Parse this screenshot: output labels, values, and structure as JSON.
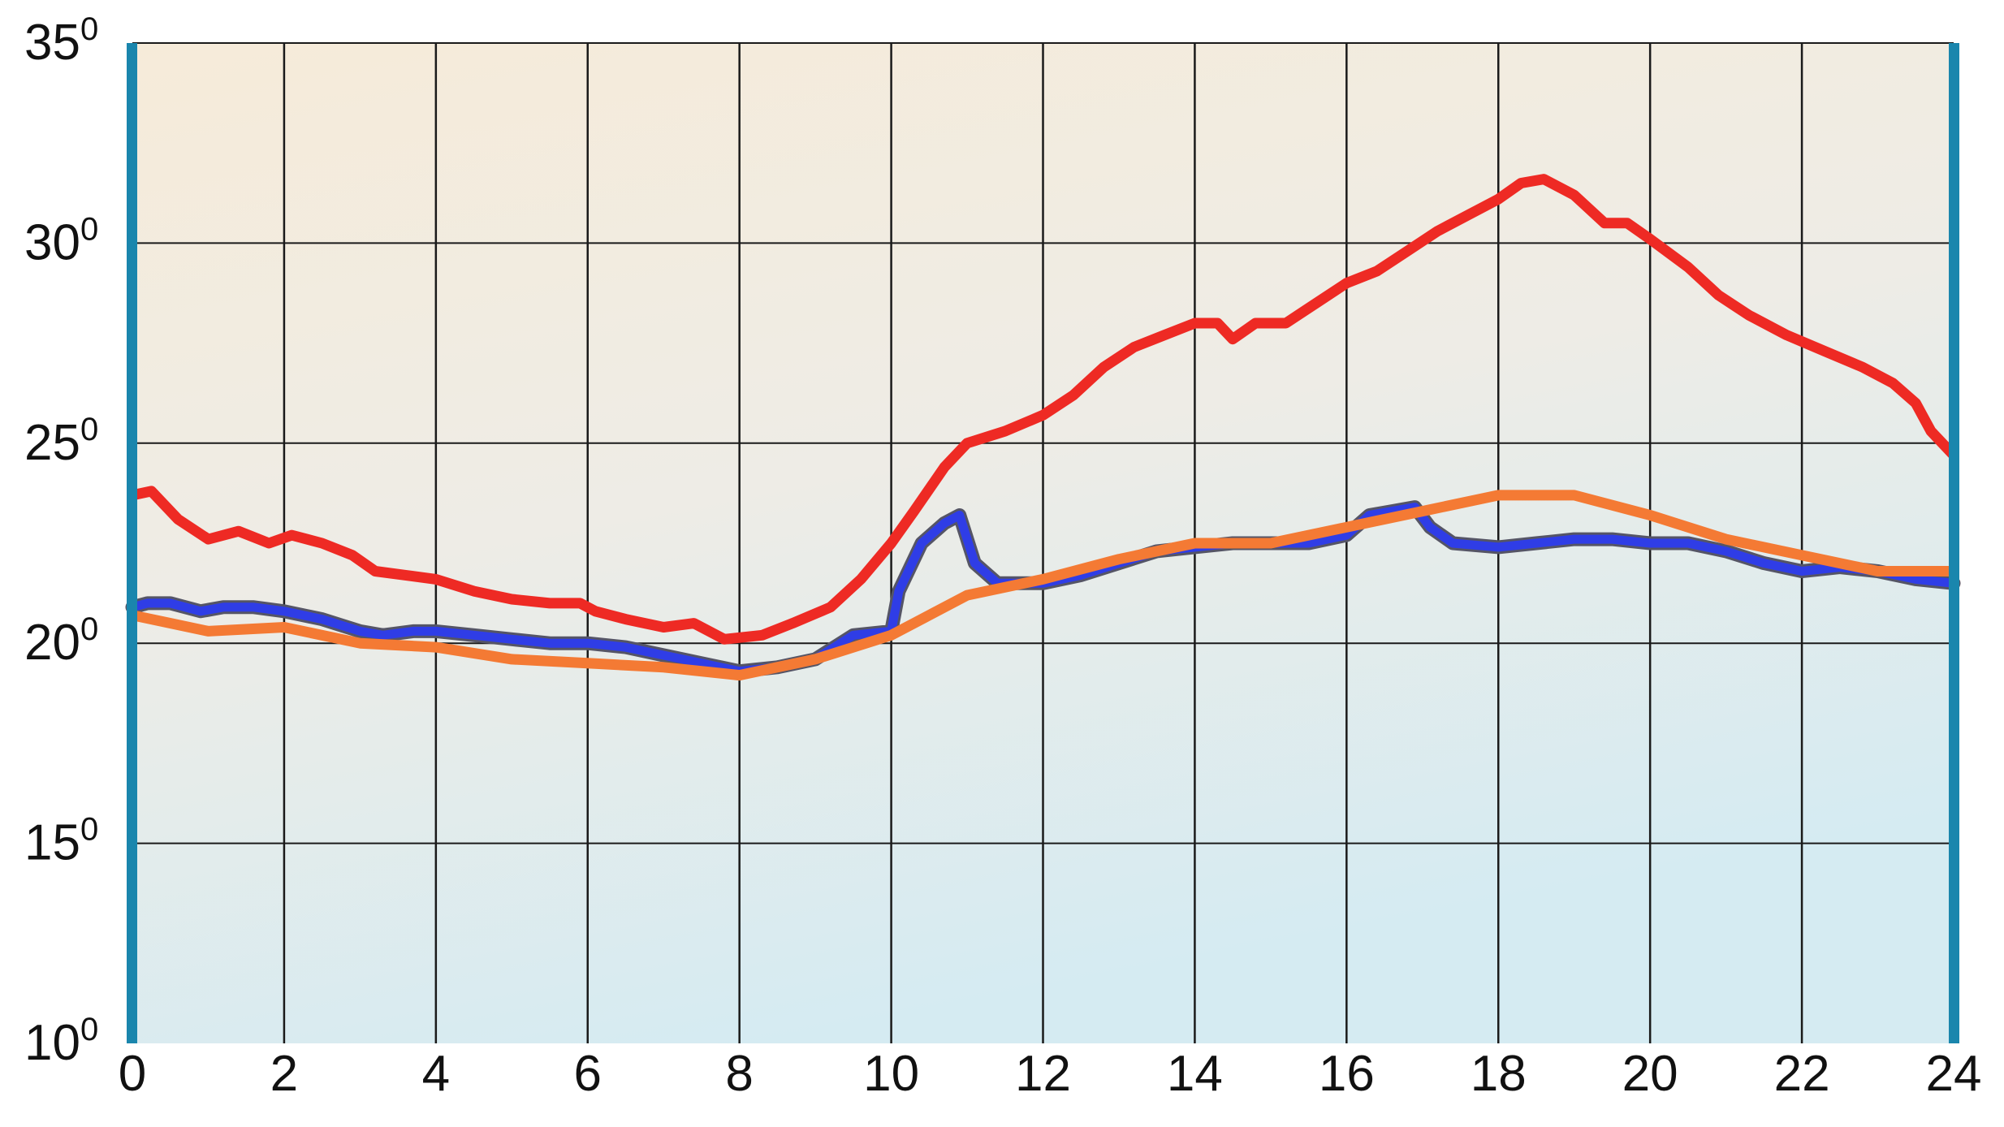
{
  "chart_data": {
    "type": "line",
    "title": "",
    "xlabel": "",
    "ylabel": "",
    "xlim": [
      0,
      24
    ],
    "ylim": [
      10,
      35
    ],
    "x_ticks": [
      "0",
      "2",
      "4",
      "6",
      "8",
      "10",
      "12",
      "14",
      "16",
      "18",
      "20",
      "22",
      "24"
    ],
    "y_ticks": [
      {
        "value": 10,
        "base": "10",
        "sup": "0"
      },
      {
        "value": 15,
        "base": "15",
        "sup": "0"
      },
      {
        "value": 20,
        "base": "20",
        "sup": "0"
      },
      {
        "value": 25,
        "base": "25",
        "sup": "0"
      },
      {
        "value": 30,
        "base": "30",
        "sup": "0"
      },
      {
        "value": 35,
        "base": "35",
        "sup": "0"
      }
    ],
    "grid": true,
    "legend": "none",
    "series": [
      {
        "color": "#ee2a24",
        "points": [
          [
            0,
            23.7
          ],
          [
            0.25,
            23.8
          ],
          [
            0.6,
            23.1
          ],
          [
            1,
            22.6
          ],
          [
            1.4,
            22.8
          ],
          [
            1.8,
            22.5
          ],
          [
            2.1,
            22.7
          ],
          [
            2.5,
            22.5
          ],
          [
            2.9,
            22.2
          ],
          [
            3.2,
            21.8
          ],
          [
            3.6,
            21.7
          ],
          [
            4,
            21.6
          ],
          [
            4.5,
            21.3
          ],
          [
            5,
            21.1
          ],
          [
            5.5,
            21.0
          ],
          [
            5.9,
            21.0
          ],
          [
            6.1,
            20.8
          ],
          [
            6.5,
            20.6
          ],
          [
            7,
            20.4
          ],
          [
            7.4,
            20.5
          ],
          [
            7.8,
            20.1
          ],
          [
            8.3,
            20.2
          ],
          [
            8.7,
            20.5
          ],
          [
            9.2,
            20.9
          ],
          [
            9.6,
            21.6
          ],
          [
            10,
            22.5
          ],
          [
            10.3,
            23.3
          ],
          [
            10.7,
            24.4
          ],
          [
            11,
            25.0
          ],
          [
            11.5,
            25.3
          ],
          [
            12,
            25.7
          ],
          [
            12.4,
            26.2
          ],
          [
            12.8,
            26.9
          ],
          [
            13.2,
            27.4
          ],
          [
            13.6,
            27.7
          ],
          [
            14,
            28.0
          ],
          [
            14.3,
            28.0
          ],
          [
            14.5,
            27.6
          ],
          [
            14.8,
            28.0
          ],
          [
            15.2,
            28.0
          ],
          [
            15.6,
            28.5
          ],
          [
            16,
            29.0
          ],
          [
            16.4,
            29.3
          ],
          [
            16.8,
            29.8
          ],
          [
            17.2,
            30.3
          ],
          [
            17.6,
            30.7
          ],
          [
            18,
            31.1
          ],
          [
            18.3,
            31.5
          ],
          [
            18.6,
            31.6
          ],
          [
            19,
            31.2
          ],
          [
            19.4,
            30.5
          ],
          [
            19.7,
            30.5
          ],
          [
            20,
            30.1
          ],
          [
            20.5,
            29.4
          ],
          [
            20.9,
            28.7
          ],
          [
            21.3,
            28.2
          ],
          [
            21.8,
            27.7
          ],
          [
            22.3,
            27.3
          ],
          [
            22.8,
            26.9
          ],
          [
            23.2,
            26.5
          ],
          [
            23.5,
            26.0
          ],
          [
            23.7,
            25.3
          ],
          [
            24,
            24.7
          ]
        ]
      },
      {
        "color": "#2f3de6",
        "points": [
          [
            0,
            20.9
          ],
          [
            0.2,
            21.0
          ],
          [
            0.5,
            21.0
          ],
          [
            0.9,
            20.8
          ],
          [
            1.2,
            20.9
          ],
          [
            1.6,
            20.9
          ],
          [
            2,
            20.8
          ],
          [
            2.5,
            20.6
          ],
          [
            3,
            20.3
          ],
          [
            3.3,
            20.2
          ],
          [
            3.7,
            20.3
          ],
          [
            4,
            20.3
          ],
          [
            4.5,
            20.2
          ],
          [
            5,
            20.1
          ],
          [
            5.5,
            20.0
          ],
          [
            6,
            20.0
          ],
          [
            6.5,
            19.9
          ],
          [
            7,
            19.7
          ],
          [
            7.5,
            19.5
          ],
          [
            8,
            19.3
          ],
          [
            8.5,
            19.4
          ],
          [
            9,
            19.6
          ],
          [
            9.5,
            20.2
          ],
          [
            10,
            20.3
          ],
          [
            10.1,
            21.3
          ],
          [
            10.4,
            22.5
          ],
          [
            10.7,
            23.0
          ],
          [
            10.9,
            23.2
          ],
          [
            11.1,
            22.0
          ],
          [
            11.4,
            21.5
          ],
          [
            12,
            21.5
          ],
          [
            12.5,
            21.7
          ],
          [
            13,
            22.0
          ],
          [
            13.5,
            22.3
          ],
          [
            14,
            22.4
          ],
          [
            14.5,
            22.5
          ],
          [
            15,
            22.5
          ],
          [
            15.5,
            22.5
          ],
          [
            16,
            22.7
          ],
          [
            16.3,
            23.2
          ],
          [
            16.6,
            23.3
          ],
          [
            16.9,
            23.4
          ],
          [
            17.1,
            22.9
          ],
          [
            17.4,
            22.5
          ],
          [
            18,
            22.4
          ],
          [
            18.5,
            22.5
          ],
          [
            19,
            22.6
          ],
          [
            19.5,
            22.6
          ],
          [
            20,
            22.5
          ],
          [
            20.5,
            22.5
          ],
          [
            21,
            22.3
          ],
          [
            21.5,
            22.0
          ],
          [
            22,
            21.8
          ],
          [
            22.5,
            21.9
          ],
          [
            23,
            21.8
          ],
          [
            23.5,
            21.6
          ],
          [
            24,
            21.5
          ]
        ]
      },
      {
        "color": "#f47a34",
        "points": [
          [
            0,
            20.7
          ],
          [
            1,
            20.3
          ],
          [
            2,
            20.4
          ],
          [
            3,
            20.0
          ],
          [
            4,
            19.9
          ],
          [
            5,
            19.6
          ],
          [
            6,
            19.5
          ],
          [
            7,
            19.4
          ],
          [
            8,
            19.2
          ],
          [
            9,
            19.6
          ],
          [
            10,
            20.2
          ],
          [
            11,
            21.2
          ],
          [
            12,
            21.6
          ],
          [
            13,
            22.1
          ],
          [
            14,
            22.5
          ],
          [
            15,
            22.5
          ],
          [
            16,
            22.9
          ],
          [
            17,
            23.3
          ],
          [
            18,
            23.7
          ],
          [
            19,
            23.7
          ],
          [
            20,
            23.2
          ],
          [
            21,
            22.6
          ],
          [
            22,
            22.2
          ],
          [
            23,
            21.8
          ],
          [
            24,
            21.8
          ]
        ]
      }
    ]
  }
}
